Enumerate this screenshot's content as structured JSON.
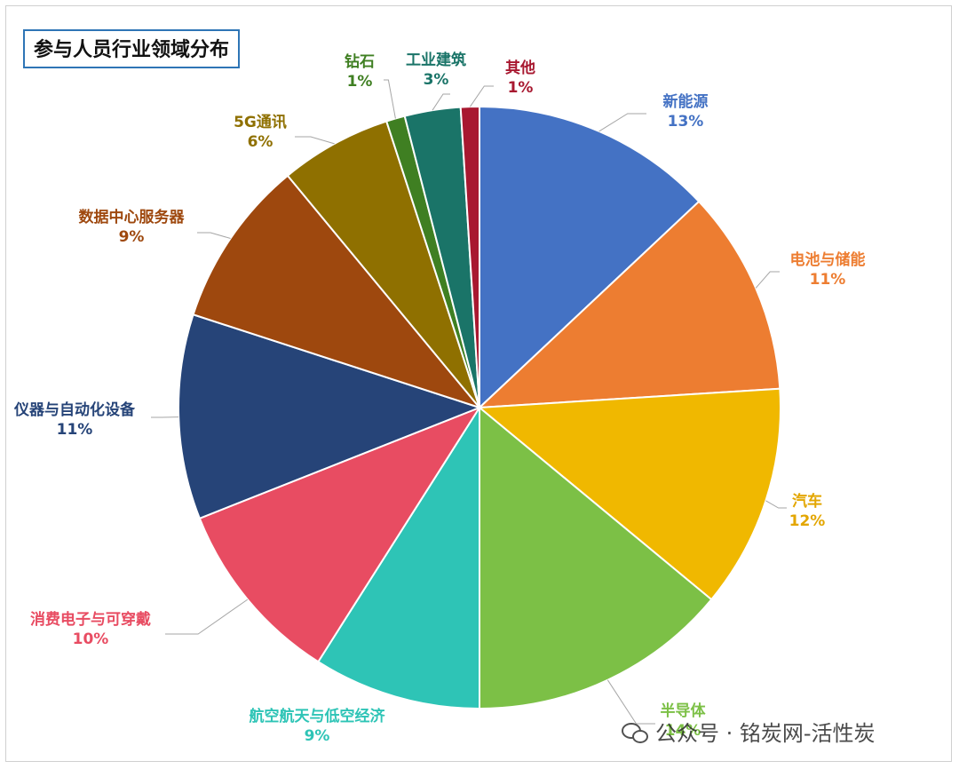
{
  "title": "参与人员行业领域分布",
  "watermark": "公众号 · 铭炭网-活性炭",
  "chart_data": {
    "type": "pie",
    "title": "参与人员行业领域分布",
    "legend": "none",
    "slices": [
      {
        "label": "新能源",
        "value": 13,
        "pct_label": "13%",
        "color": "#4472c4"
      },
      {
        "label": "电池与储能",
        "value": 11,
        "pct_label": "11%",
        "color": "#ed7d31"
      },
      {
        "label": "汽车",
        "value": 12,
        "pct_label": "12%",
        "color": "#f0b800"
      },
      {
        "label": "半导体",
        "value": 14,
        "pct_label": "14%",
        "color": "#7cc046"
      },
      {
        "label": "航空航天与低空经济",
        "value": 9,
        "pct_label": "9%",
        "color": "#2ec4b6"
      },
      {
        "label": "消费电子与可穿戴",
        "value": 10,
        "pct_label": "10%",
        "color": "#e84c62"
      },
      {
        "label": "仪器与自动化设备",
        "value": 11,
        "pct_label": "11%",
        "color": "#264478"
      },
      {
        "label": "数据中心服务器",
        "value": 9,
        "pct_label": "9%",
        "color": "#9e480e"
      },
      {
        "label": "5G通讯",
        "value": 6,
        "pct_label": "6%",
        "color": "#8f7000"
      },
      {
        "label": "钻石",
        "value": 1,
        "pct_label": "1%",
        "color": "#3f7f22"
      },
      {
        "label": "工业建筑",
        "value": 3,
        "pct_label": "3%",
        "color": "#1a7468"
      },
      {
        "label": "其他",
        "value": 1,
        "pct_label": "1%",
        "color": "#a81830"
      }
    ],
    "label_colors": {
      "新能源": "#4472c4",
      "电池与储能": "#ed7d31",
      "汽车": "#e3a600",
      "半导体": "#7cc046",
      "航空航天与低空经济": "#2ec4b6",
      "消费电子与可穿戴": "#e84c62",
      "仪器与自动化设备": "#264478",
      "数据中心服务器": "#9e480e",
      "5G通讯": "#8f7000",
      "钻石": "#3f7f22",
      "工业建筑": "#1a7468",
      "其他": "#a81830"
    }
  }
}
